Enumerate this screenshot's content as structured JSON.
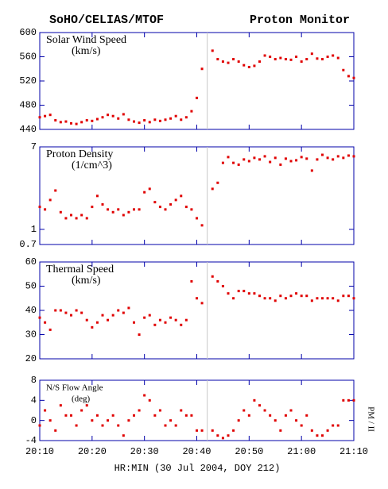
{
  "header": {
    "left": "SoHO/CELIAS/MTOF",
    "right": "Proton Monitor"
  },
  "xlabel": "HR:MIN (30 Jul 2004, DOY 212)",
  "side_label": "PM / II",
  "chart_data": [
    {
      "type": "scatter",
      "title": "Solar Wind Speed",
      "units": "(km/s)",
      "color": "#e00000",
      "vlines": [
        "20:42"
      ],
      "xlim": [
        "20:10",
        "21:10"
      ],
      "xticks": [
        "20:10",
        "20:20",
        "20:30",
        "20:40",
        "20:50",
        "21:00",
        "21:10"
      ],
      "ylim": [
        440,
        600
      ],
      "yticks": [
        440,
        480,
        520,
        560,
        600
      ],
      "x": [
        "20:10",
        "20:11",
        "20:12",
        "20:13",
        "20:14",
        "20:15",
        "20:16",
        "20:17",
        "20:18",
        "20:19",
        "20:20",
        "20:21",
        "20:22",
        "20:23",
        "20:24",
        "20:25",
        "20:26",
        "20:27",
        "20:28",
        "20:29",
        "20:30",
        "20:31",
        "20:32",
        "20:33",
        "20:34",
        "20:35",
        "20:36",
        "20:37",
        "20:38",
        "20:39",
        "20:40",
        "20:41",
        "20:42",
        "20:43",
        "20:44",
        "20:45",
        "20:46",
        "20:47",
        "20:48",
        "20:49",
        "20:50",
        "20:51",
        "20:52",
        "20:53",
        "20:54",
        "20:55",
        "20:56",
        "20:57",
        "20:58",
        "20:59",
        "21:00",
        "21:01",
        "21:02",
        "21:03",
        "21:04",
        "21:05",
        "21:06",
        "21:07",
        "21:08",
        "21:09",
        "21:10"
      ],
      "y": [
        460,
        462,
        464,
        455,
        452,
        453,
        450,
        449,
        452,
        455,
        454,
        457,
        460,
        464,
        462,
        458,
        465,
        456,
        453,
        451,
        455,
        452,
        456,
        454,
        456,
        458,
        462,
        456,
        460,
        470,
        492,
        540,
        null,
        570,
        556,
        552,
        550,
        556,
        552,
        546,
        543,
        545,
        552,
        562,
        560,
        556,
        558,
        556,
        555,
        560,
        552,
        556,
        565,
        557,
        556,
        560,
        562,
        558,
        538,
        528,
        525
      ]
    },
    {
      "type": "scatter",
      "title": "Proton Density",
      "units": "(1/cm^3)",
      "color": "#e00000",
      "vlines": [
        "20:42"
      ],
      "log": true,
      "xlim": [
        "20:10",
        "21:10"
      ],
      "xticks": [
        "20:10",
        "20:20",
        "20:30",
        "20:40",
        "20:50",
        "21:00",
        "21:10"
      ],
      "ylim": [
        0.7,
        7
      ],
      "yticks": [
        0.7,
        1,
        7
      ],
      "x": [
        "20:10",
        "20:11",
        "20:12",
        "20:13",
        "20:14",
        "20:15",
        "20:16",
        "20:17",
        "20:18",
        "20:19",
        "20:20",
        "20:21",
        "20:22",
        "20:23",
        "20:24",
        "20:25",
        "20:26",
        "20:27",
        "20:28",
        "20:29",
        "20:30",
        "20:31",
        "20:32",
        "20:33",
        "20:34",
        "20:35",
        "20:36",
        "20:37",
        "20:38",
        "20:39",
        "20:40",
        "20:41",
        "20:42",
        "20:43",
        "20:44",
        "20:45",
        "20:46",
        "20:47",
        "20:48",
        "20:49",
        "20:50",
        "20:51",
        "20:52",
        "20:53",
        "20:54",
        "20:55",
        "20:56",
        "20:57",
        "20:58",
        "20:59",
        "21:00",
        "21:01",
        "21:02",
        "21:03",
        "21:04",
        "21:05",
        "21:06",
        "21:07",
        "21:08",
        "21:09",
        "21:10"
      ],
      "y": [
        1.7,
        1.6,
        2.0,
        2.5,
        1.5,
        1.3,
        1.4,
        1.3,
        1.4,
        1.3,
        1.7,
        2.2,
        1.8,
        1.6,
        1.5,
        1.6,
        1.4,
        1.5,
        1.6,
        1.6,
        2.4,
        2.6,
        1.9,
        1.7,
        1.6,
        1.8,
        2.0,
        2.2,
        1.7,
        1.6,
        1.3,
        1.1,
        null,
        2.6,
        3.0,
        4.8,
        5.5,
        4.8,
        4.6,
        5.2,
        5.0,
        5.4,
        5.2,
        5.6,
        4.9,
        5.4,
        4.6,
        5.3,
        5.0,
        5.1,
        5.5,
        5.3,
        4.0,
        5.2,
        5.8,
        5.4,
        5.2,
        5.6,
        5.4,
        5.7,
        5.6
      ]
    },
    {
      "type": "scatter",
      "title": "Thermal Speed",
      "units": "(km/s)",
      "color": "#e00000",
      "vlines": [
        "20:42"
      ],
      "xlim": [
        "20:10",
        "21:10"
      ],
      "xticks": [
        "20:10",
        "20:20",
        "20:30",
        "20:40",
        "20:50",
        "21:00",
        "21:10"
      ],
      "ylim": [
        20,
        60
      ],
      "yticks": [
        20,
        30,
        40,
        50,
        60
      ],
      "x": [
        "20:10",
        "20:11",
        "20:12",
        "20:13",
        "20:14",
        "20:15",
        "20:16",
        "20:17",
        "20:18",
        "20:19",
        "20:20",
        "20:21",
        "20:22",
        "20:23",
        "20:24",
        "20:25",
        "20:26",
        "20:27",
        "20:28",
        "20:29",
        "20:30",
        "20:31",
        "20:32",
        "20:33",
        "20:34",
        "20:35",
        "20:36",
        "20:37",
        "20:38",
        "20:39",
        "20:40",
        "20:41",
        "20:42",
        "20:43",
        "20:44",
        "20:45",
        "20:46",
        "20:47",
        "20:48",
        "20:49",
        "20:50",
        "20:51",
        "20:52",
        "20:53",
        "20:54",
        "20:55",
        "20:56",
        "20:57",
        "20:58",
        "20:59",
        "21:00",
        "21:01",
        "21:02",
        "21:03",
        "21:04",
        "21:05",
        "21:06",
        "21:07",
        "21:08",
        "21:09",
        "21:10"
      ],
      "y": [
        37,
        35,
        32,
        40,
        40,
        39,
        38,
        40,
        39,
        36,
        33,
        35,
        38,
        36,
        38,
        40,
        39,
        41,
        35,
        30,
        37,
        38,
        34,
        36,
        35,
        37,
        36,
        34,
        36,
        52,
        45,
        43,
        null,
        54,
        52,
        50,
        47,
        45,
        48,
        48,
        47,
        47,
        46,
        45,
        45,
        44,
        46,
        45,
        46,
        47,
        46,
        46,
        44,
        45,
        45,
        45,
        45,
        44,
        46,
        46,
        45
      ]
    },
    {
      "type": "scatter",
      "title": "N/S Flow Angle",
      "units": "(deg)",
      "color": "#e00000",
      "vlines": [
        "20:42"
      ],
      "xlim": [
        "20:10",
        "21:10"
      ],
      "xticks": [
        "20:10",
        "20:20",
        "20:30",
        "20:40",
        "20:50",
        "21:00",
        "21:10"
      ],
      "ylim": [
        -4,
        8
      ],
      "yticks": [
        -4,
        0,
        4,
        8
      ],
      "x": [
        "20:10",
        "20:11",
        "20:12",
        "20:13",
        "20:14",
        "20:15",
        "20:16",
        "20:17",
        "20:18",
        "20:19",
        "20:20",
        "20:21",
        "20:22",
        "20:23",
        "20:24",
        "20:25",
        "20:26",
        "20:27",
        "20:28",
        "20:29",
        "20:30",
        "20:31",
        "20:32",
        "20:33",
        "20:34",
        "20:35",
        "20:36",
        "20:37",
        "20:38",
        "20:39",
        "20:40",
        "20:41",
        "20:42",
        "20:43",
        "20:44",
        "20:45",
        "20:46",
        "20:47",
        "20:48",
        "20:49",
        "20:50",
        "20:51",
        "20:52",
        "20:53",
        "20:54",
        "20:55",
        "20:56",
        "20:57",
        "20:58",
        "20:59",
        "21:00",
        "21:01",
        "21:02",
        "21:03",
        "21:04",
        "21:05",
        "21:06",
        "21:07",
        "21:08",
        "21:09",
        "21:10"
      ],
      "y": [
        -1,
        2,
        0,
        -2,
        3,
        1,
        1,
        -1,
        2,
        3,
        0,
        1,
        -1,
        0,
        1,
        -1,
        -3,
        0,
        1,
        2,
        5,
        4,
        1,
        2,
        -1,
        0,
        -1,
        2,
        1,
        1,
        -2,
        -2,
        null,
        -2,
        -3,
        -3.5,
        -3,
        -2,
        0,
        2,
        1,
        4,
        3,
        2,
        1,
        0,
        -2,
        1,
        2,
        0,
        -1,
        1,
        -2,
        -3,
        -3,
        -2,
        -1,
        -1,
        4,
        4,
        4
      ]
    }
  ]
}
